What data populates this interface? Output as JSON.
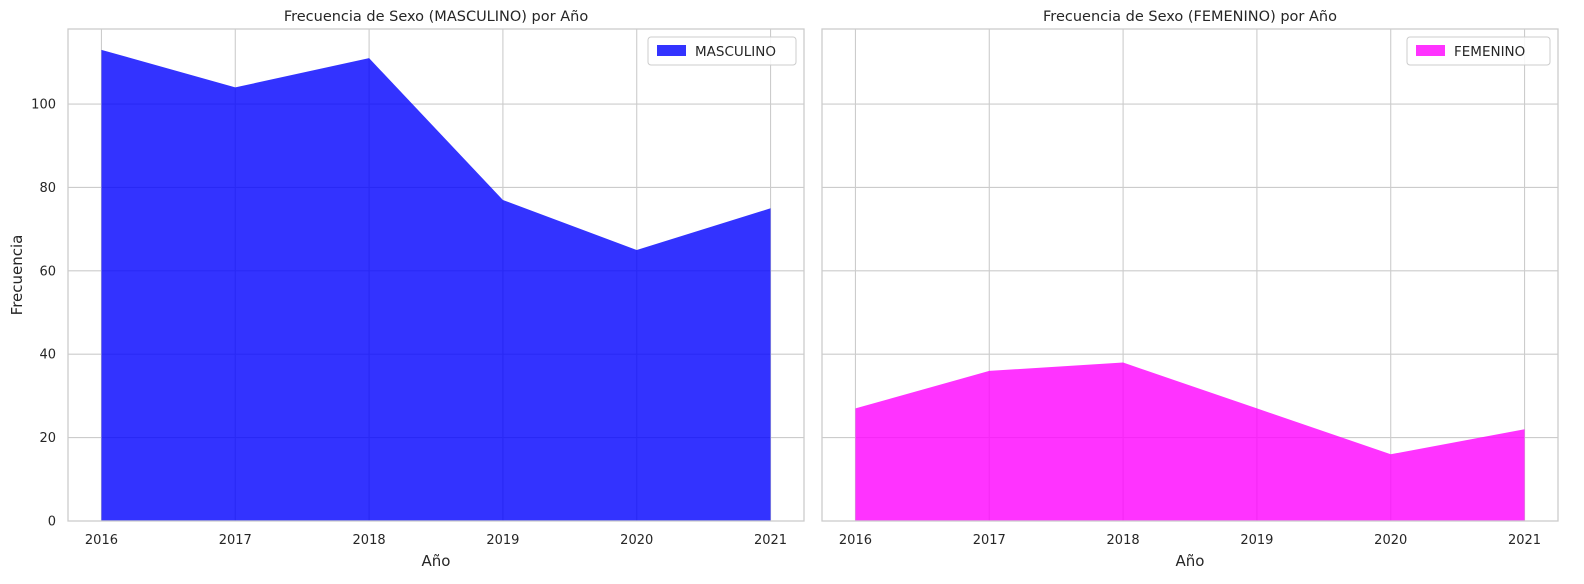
{
  "chart_data": [
    {
      "type": "area",
      "title": "Frecuencia de Sexo (MASCULINO) por Año",
      "xlabel": "Año",
      "ylabel": "Frecuencia",
      "x": [
        2016,
        2017,
        2018,
        2019,
        2020,
        2021
      ],
      "series": [
        {
          "name": "MASCULINO",
          "values": [
            113,
            104,
            111,
            77,
            65,
            75
          ],
          "color": "#0000ff",
          "opacity": 0.8
        }
      ],
      "xlim": [
        2015.75,
        2021.25
      ],
      "ylim": [
        0,
        118
      ],
      "yticks": [
        0,
        20,
        40,
        60,
        80,
        100
      ],
      "xticks": [
        2016,
        2017,
        2018,
        2019,
        2020,
        2021
      ],
      "grid": true,
      "legend_position": "top-right"
    },
    {
      "type": "area",
      "title": "Frecuencia de Sexo (FEMENINO) por Año",
      "xlabel": "Año",
      "ylabel": "",
      "x": [
        2016,
        2017,
        2018,
        2019,
        2020,
        2021
      ],
      "series": [
        {
          "name": "FEMENINO",
          "values": [
            27,
            36,
            38,
            27,
            16,
            22
          ],
          "color": "#ff00ff",
          "opacity": 0.8
        }
      ],
      "xlim": [
        2015.75,
        2021.25
      ],
      "ylim": [
        0,
        118
      ],
      "yticks": [
        0,
        20,
        40,
        60,
        80,
        100
      ],
      "xticks": [
        2016,
        2017,
        2018,
        2019,
        2020,
        2021
      ],
      "grid": true,
      "legend_position": "top-right",
      "shared_y": true
    }
  ]
}
